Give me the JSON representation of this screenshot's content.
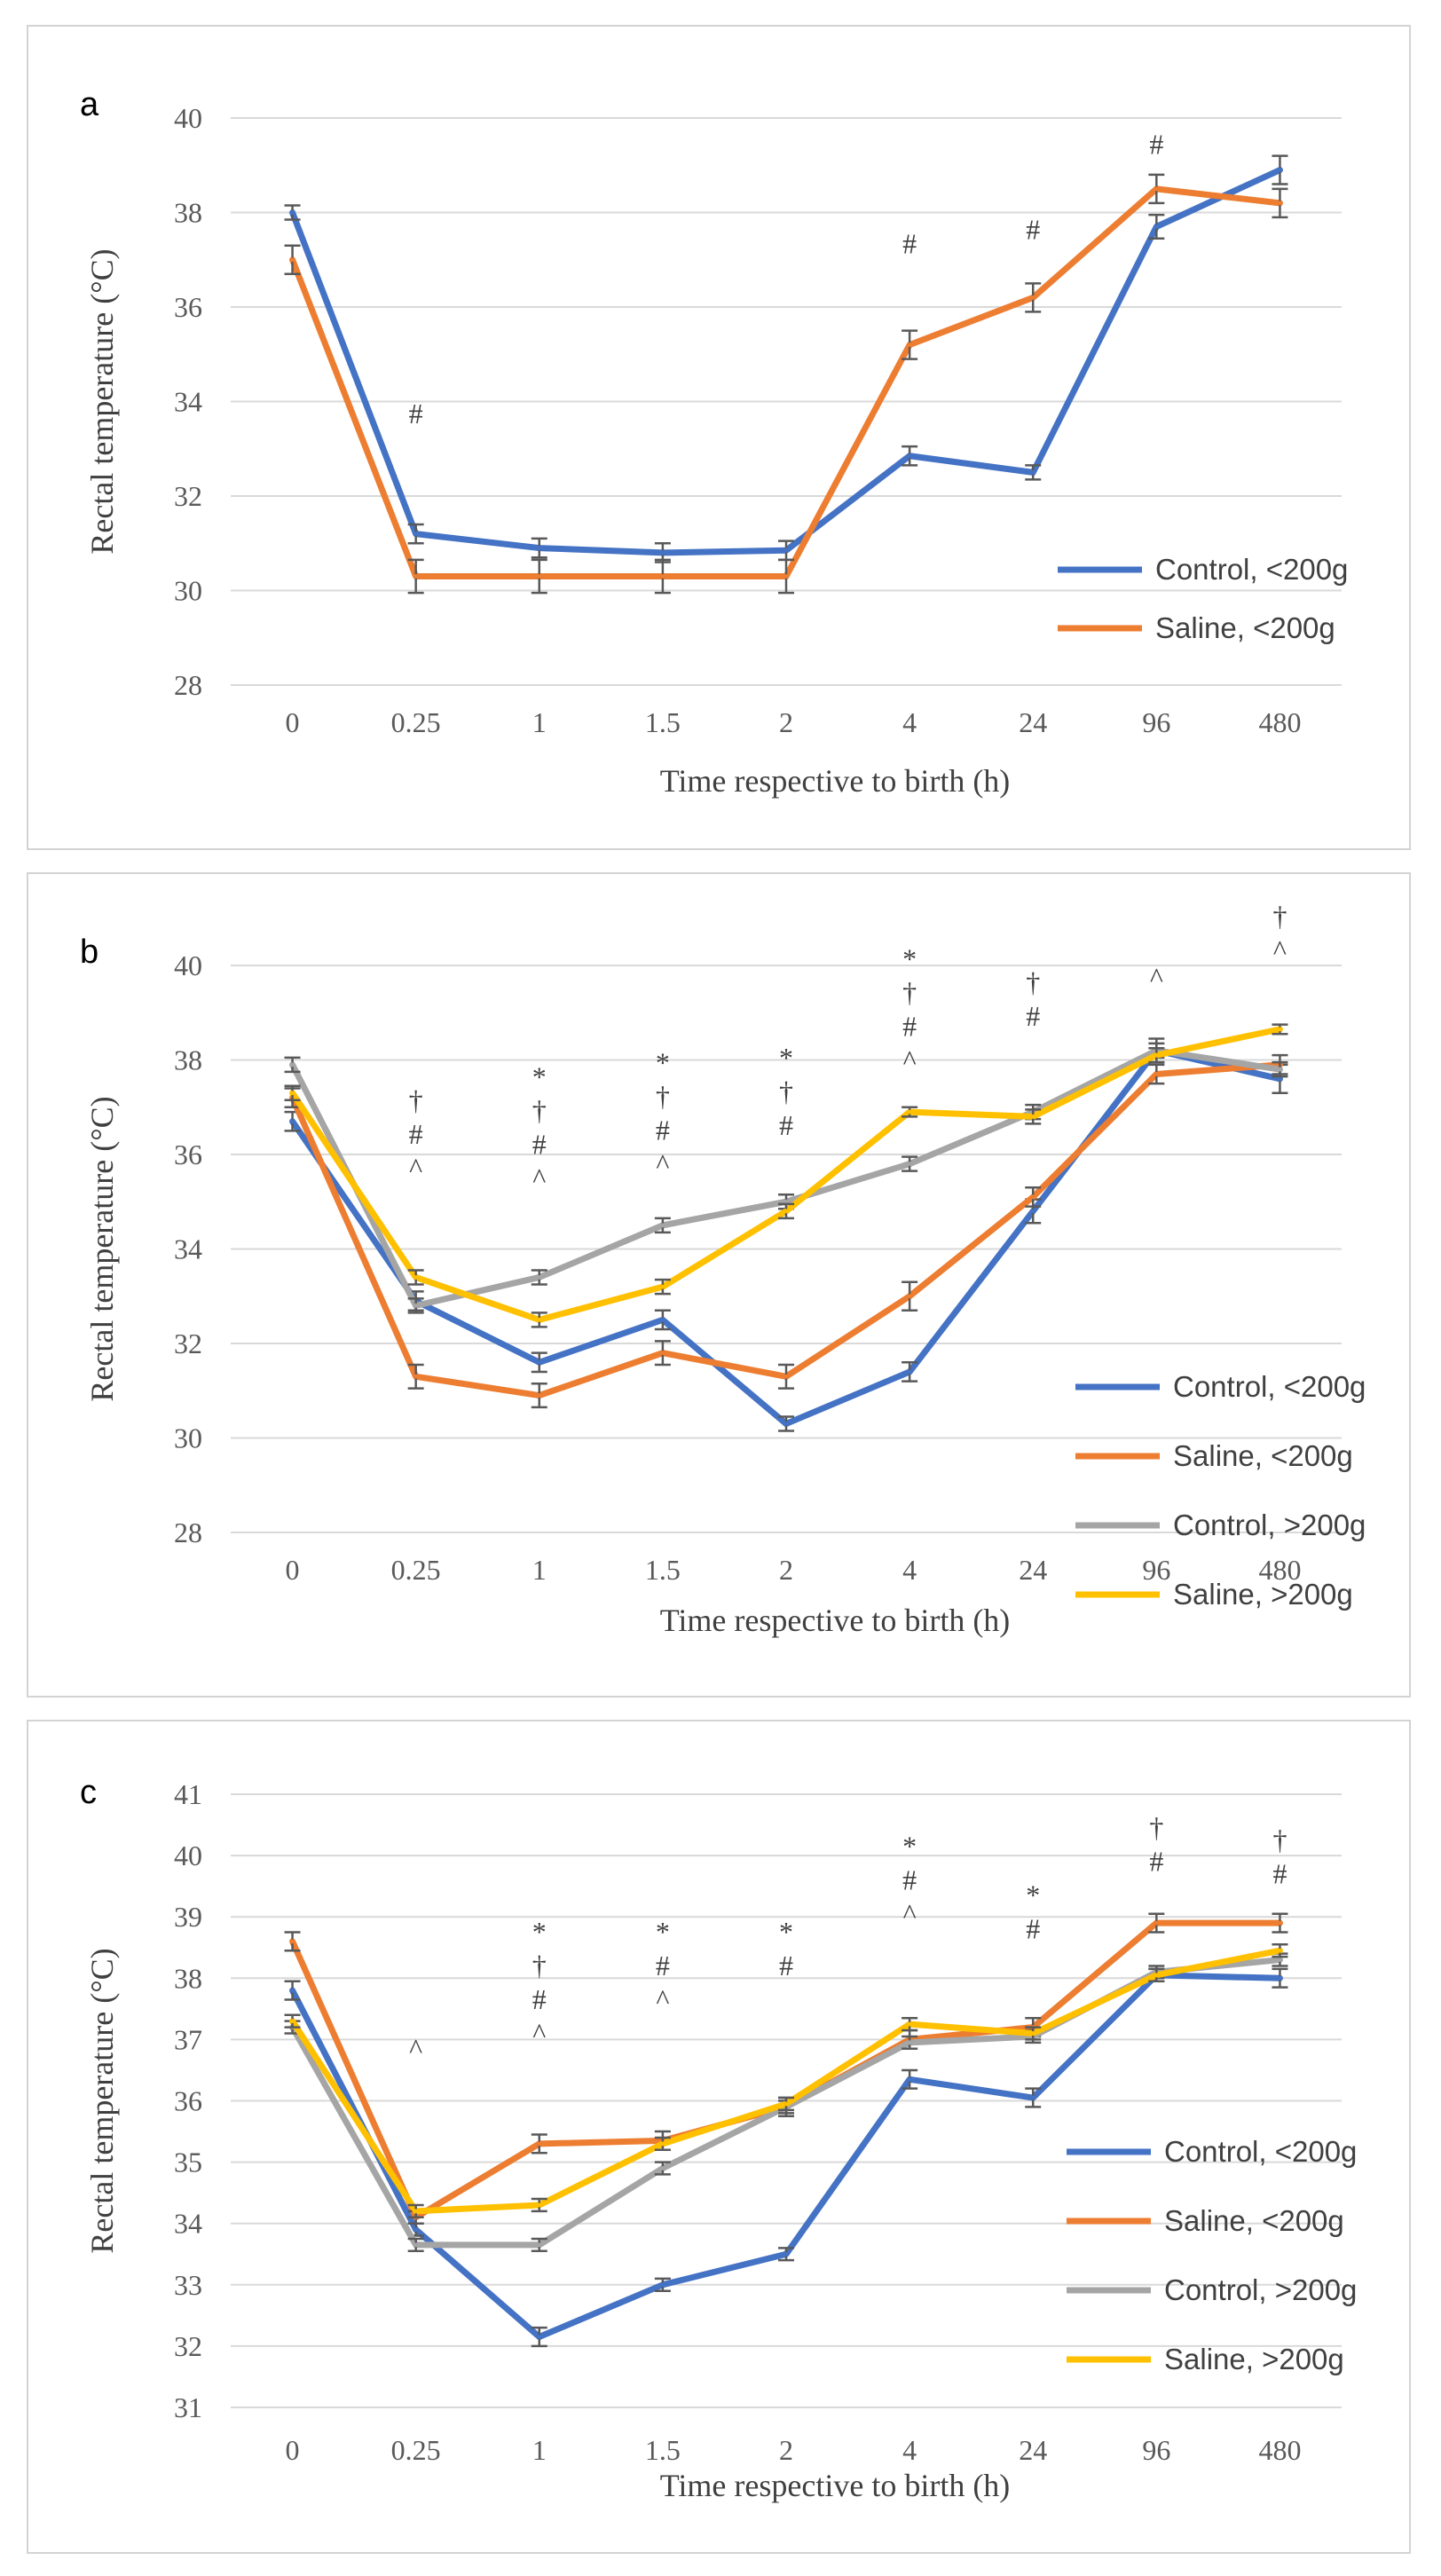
{
  "chart_data": [
    {
      "type": "line",
      "panel_label": "a",
      "xlabel": "Time respective to birth (h)",
      "ylabel": "Rectal temperature (°C)",
      "categories": [
        "0",
        "0.25",
        "1",
        "1.5",
        "2",
        "4",
        "24",
        "96",
        "480"
      ],
      "ylim": [
        28,
        40
      ],
      "yticks": [
        28,
        30,
        32,
        34,
        36,
        38,
        40
      ],
      "grid": true,
      "legend_position": "right",
      "series": [
        {
          "name": "Control, <200g",
          "color": "#4472c4",
          "values": [
            38.0,
            31.2,
            30.9,
            30.8,
            30.85,
            32.85,
            32.5,
            37.7,
            38.9
          ],
          "errors": [
            0.15,
            0.2,
            0.2,
            0.2,
            0.2,
            0.2,
            0.15,
            0.25,
            0.3
          ]
        },
        {
          "name": "Saline, <200g",
          "color": "#ed7d31",
          "values": [
            37.0,
            30.3,
            30.3,
            30.3,
            30.3,
            35.2,
            36.2,
            38.5,
            38.2
          ],
          "errors": [
            0.3,
            0.35,
            0.35,
            0.35,
            0.35,
            0.3,
            0.3,
            0.3,
            0.3
          ]
        }
      ],
      "annotations": [
        {
          "category": "0.25",
          "stack": [
            "#"
          ],
          "top": 33.8
        },
        {
          "category": "4",
          "stack": [
            "#"
          ],
          "top": 37.4
        },
        {
          "category": "24",
          "stack": [
            "#"
          ],
          "top": 37.7
        },
        {
          "category": "96",
          "stack": [
            "#"
          ],
          "top": 39.5
        }
      ]
    },
    {
      "type": "line",
      "panel_label": "b",
      "xlabel": "Time respective to birth (h)",
      "ylabel": "Rectal temperature (°C)",
      "categories": [
        "0",
        "0.25",
        "1",
        "1.5",
        "2",
        "4",
        "24",
        "96",
        "480"
      ],
      "ylim": [
        28,
        40
      ],
      "yticks": [
        28,
        30,
        32,
        34,
        36,
        38,
        40
      ],
      "grid": true,
      "legend_position": "right",
      "series": [
        {
          "name": "Control, <200g",
          "color": "#4472c4",
          "values": [
            36.7,
            32.9,
            31.6,
            32.5,
            30.3,
            31.4,
            34.8,
            38.2,
            37.6
          ],
          "errors": [
            0.2,
            0.2,
            0.2,
            0.2,
            0.15,
            0.2,
            0.25,
            0.25,
            0.3
          ]
        },
        {
          "name": "Saline, <200g",
          "color": "#ed7d31",
          "values": [
            37.2,
            31.3,
            30.9,
            31.8,
            31.3,
            33.0,
            35.1,
            37.7,
            37.9
          ],
          "errors": [
            0.2,
            0.25,
            0.25,
            0.25,
            0.25,
            0.3,
            0.2,
            0.2,
            0.2
          ]
        },
        {
          "name": "Control, >200g",
          "color": "#a5a5a5",
          "values": [
            37.9,
            32.8,
            33.4,
            34.5,
            35.0,
            35.8,
            36.9,
            38.2,
            37.8
          ],
          "errors": [
            0.15,
            0.15,
            0.15,
            0.15,
            0.15,
            0.15,
            0.15,
            0.15,
            0.15
          ]
        },
        {
          "name": "Saline, >200g",
          "color": "#ffc000",
          "values": [
            37.3,
            33.4,
            32.5,
            33.2,
            34.8,
            36.9,
            36.8,
            38.1,
            38.65
          ],
          "errors": [
            0.15,
            0.15,
            0.15,
            0.15,
            0.15,
            0.1,
            0.15,
            0.15,
            0.1
          ]
        }
      ],
      "annotations": [
        {
          "category": "0.25",
          "stack": [
            "†",
            "#",
            "^"
          ],
          "top": 37.2
        },
        {
          "category": "1",
          "stack": [
            "*",
            "†",
            "#",
            "^"
          ],
          "top": 37.7
        },
        {
          "category": "1.5",
          "stack": [
            "*",
            "†",
            "#",
            "^"
          ],
          "top": 38.0
        },
        {
          "category": "2",
          "stack": [
            "*",
            "†",
            "#"
          ],
          "top": 38.1
        },
        {
          "category": "4",
          "stack": [
            "*",
            "†",
            "#",
            "^"
          ],
          "top": 40.2
        },
        {
          "category": "24",
          "stack": [
            "†",
            "#"
          ],
          "top": 39.7
        },
        {
          "category": "96",
          "stack": [
            "^"
          ],
          "top": 39.8
        },
        {
          "category": "480",
          "stack": [
            "†",
            "^"
          ],
          "top": 41.1
        }
      ]
    },
    {
      "type": "line",
      "panel_label": "c",
      "xlabel": "Time respective to birth (h)",
      "ylabel": "Rectal temperature (°C)",
      "categories": [
        "0",
        "0.25",
        "1",
        "1.5",
        "2",
        "4",
        "24",
        "96",
        "480"
      ],
      "ylim": [
        31,
        41
      ],
      "yticks": [
        31,
        32,
        33,
        34,
        35,
        36,
        37,
        38,
        39,
        40,
        41
      ],
      "grid": true,
      "legend_position": "right",
      "series": [
        {
          "name": "Control, <200g",
          "color": "#4472c4",
          "values": [
            37.8,
            33.9,
            32.15,
            33.0,
            33.5,
            36.35,
            36.05,
            38.05,
            38.0
          ],
          "errors": [
            0.15,
            0.1,
            0.15,
            0.1,
            0.1,
            0.15,
            0.15,
            0.1,
            0.15
          ]
        },
        {
          "name": "Saline, <200g",
          "color": "#ed7d31",
          "values": [
            38.6,
            34.1,
            35.3,
            35.35,
            35.9,
            37.0,
            37.2,
            38.9,
            38.9
          ],
          "errors": [
            0.15,
            0.1,
            0.15,
            0.15,
            0.15,
            0.15,
            0.15,
            0.15,
            0.15
          ]
        },
        {
          "name": "Control, >200g",
          "color": "#a5a5a5",
          "values": [
            37.2,
            33.65,
            33.65,
            34.9,
            35.9,
            36.95,
            37.05,
            38.1,
            38.3
          ],
          "errors": [
            0.1,
            0.1,
            0.1,
            0.1,
            0.1,
            0.1,
            0.1,
            0.1,
            0.1
          ]
        },
        {
          "name": "Saline, >200g",
          "color": "#ffc000",
          "values": [
            37.3,
            34.2,
            34.3,
            35.3,
            35.95,
            37.25,
            37.1,
            38.05,
            38.45
          ],
          "errors": [
            0.1,
            0.1,
            0.1,
            0.1,
            0.1,
            0.1,
            0.1,
            0.1,
            0.1
          ]
        }
      ],
      "annotations": [
        {
          "category": "0.25",
          "stack": [
            "^"
          ],
          "top": 36.9
        },
        {
          "category": "1",
          "stack": [
            "*",
            "†",
            "#",
            "^"
          ],
          "top": 38.8
        },
        {
          "category": "1.5",
          "stack": [
            "*",
            "#",
            "^"
          ],
          "top": 38.8
        },
        {
          "category": "2",
          "stack": [
            "*",
            "#"
          ],
          "top": 38.8
        },
        {
          "category": "4",
          "stack": [
            "*",
            "#",
            "^"
          ],
          "top": 40.2
        },
        {
          "category": "24",
          "stack": [
            "*",
            "#"
          ],
          "top": 39.4
        },
        {
          "category": "96",
          "stack": [
            "†",
            "#"
          ],
          "top": 40.5
        },
        {
          "category": "480",
          "stack": [
            "†",
            "#"
          ],
          "top": 40.3
        }
      ]
    }
  ]
}
